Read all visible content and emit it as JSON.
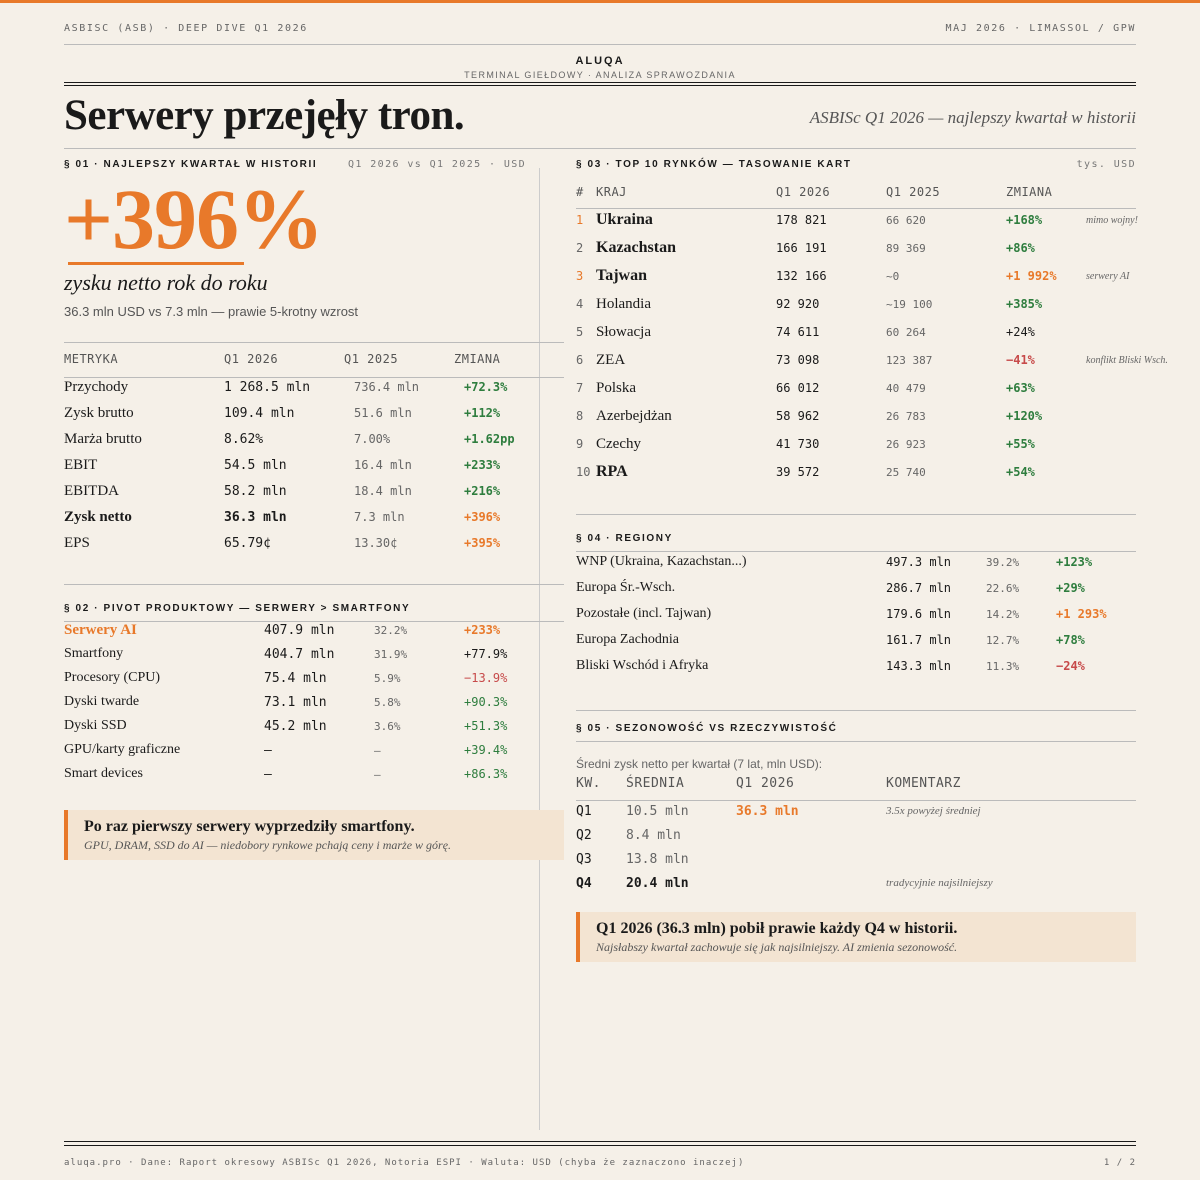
{
  "header": {
    "top_left": "ASBISC (ASB) · DEEP DIVE Q1 2026",
    "top_right": "MAJ 2026 · LIMASSOL / GPW",
    "brand": "ALUQA",
    "brand_sub": "TERMINAL GIEŁDOWY · ANALIZA SPRAWOZDANIA",
    "headline": "Serwery przejęły tron.",
    "subhead": "ASBISc Q1 2026 — najlepszy kwartał w historii"
  },
  "colors": {
    "accent": "#e8792a",
    "positive": "#2e7d3e",
    "negative": "#c74a4a",
    "background": "#f5f0e8"
  },
  "s1": {
    "title": "§ 01 · NAJLEPSZY KWARTAŁ W HISTORII",
    "meta": "Q1 2026 vs Q1 2025 · USD",
    "big_value": "+396%",
    "big_label": "zysku netto rok do roku",
    "big_note": "36.3 mln USD vs 7.3 mln — prawie 5-krotny wzrost",
    "headers": [
      "METRYKA",
      "Q1 2026",
      "Q1 2025",
      "ZMIANA"
    ],
    "rows": [
      {
        "name": "Przychody",
        "q1_2026": "1 268.5 mln",
        "q1_2025": "736.4 mln",
        "change": "+72.3%",
        "tone": "green",
        "bold": false
      },
      {
        "name": "Zysk brutto",
        "q1_2026": "109.4 mln",
        "q1_2025": "51.6 mln",
        "change": "+112%",
        "tone": "green",
        "bold": false
      },
      {
        "name": "Marża brutto",
        "q1_2026": "8.62%",
        "q1_2025": "7.00%",
        "change": "+1.62pp",
        "tone": "green",
        "bold": false
      },
      {
        "name": "EBIT",
        "q1_2026": "54.5 mln",
        "q1_2025": "16.4 mln",
        "change": "+233%",
        "tone": "green",
        "bold": false
      },
      {
        "name": "EBITDA",
        "q1_2026": "58.2 mln",
        "q1_2025": "18.4 mln",
        "change": "+216%",
        "tone": "green",
        "bold": false
      },
      {
        "name": "Zysk netto",
        "q1_2026": "36.3 mln",
        "q1_2025": "7.3 mln",
        "change": "+396%",
        "tone": "orange",
        "bold": true
      },
      {
        "name": "EPS",
        "q1_2026": "65.79¢",
        "q1_2025": "13.30¢",
        "change": "+395%",
        "tone": "orange",
        "bold": false
      }
    ]
  },
  "s2": {
    "title": "§ 02 · PIVOT PRODUKTOWY — SERWERY > SMARTFONY",
    "rows": [
      {
        "name": "Serwery AI",
        "value": "407.9 mln",
        "share": "32.2%",
        "change": "+233%",
        "tone": "orange",
        "highlight": true
      },
      {
        "name": "Smartfony",
        "value": "404.7 mln",
        "share": "31.9%",
        "change": "+77.9%",
        "tone": "dark",
        "highlight": false
      },
      {
        "name": "Procesory (CPU)",
        "value": "75.4 mln",
        "share": "5.9%",
        "change": "−13.9%",
        "tone": "red",
        "highlight": false
      },
      {
        "name": "Dyski twarde",
        "value": "73.1 mln",
        "share": "5.8%",
        "change": "+90.3%",
        "tone": "green",
        "highlight": false
      },
      {
        "name": "Dyski SSD",
        "value": "45.2 mln",
        "share": "3.6%",
        "change": "+51.3%",
        "tone": "green",
        "highlight": false
      },
      {
        "name": "GPU/karty graficzne",
        "value": "—",
        "share": "—",
        "change": "+39.4%",
        "tone": "green",
        "highlight": false
      },
      {
        "name": "Smart devices",
        "value": "—",
        "share": "—",
        "change": "+86.3%",
        "tone": "green",
        "highlight": false
      }
    ],
    "callout_title": "Po raz pierwszy serwery wyprzedziły smartfony.",
    "callout_sub": "GPU, DRAM, SSD do AI — niedobory rynkowe pchają ceny i marże w górę."
  },
  "s3": {
    "title": "§ 03 · TOP 10 RYNKÓW — TASOWANIE KART",
    "meta": "tys. USD",
    "headers": [
      "#",
      "KRAJ",
      "Q1 2026",
      "Q1 2025",
      "ZMIANA"
    ],
    "rows": [
      {
        "rank": "1",
        "country": "Ukraina",
        "q1_2026": "178 821",
        "q1_2025": "66 620",
        "change": "+168%",
        "tone": "green",
        "bold": true,
        "rank_orange": true,
        "note": "mimo wojny!"
      },
      {
        "rank": "2",
        "country": "Kazachstan",
        "q1_2026": "166 191",
        "q1_2025": "89 369",
        "change": "+86%",
        "tone": "green",
        "bold": true,
        "rank_orange": false,
        "note": ""
      },
      {
        "rank": "3",
        "country": "Tajwan",
        "q1_2026": "132 166",
        "q1_2025": "~0",
        "change": "+1 992%",
        "tone": "orange",
        "bold": true,
        "rank_orange": true,
        "note": "serwery AI"
      },
      {
        "rank": "4",
        "country": "Holandia",
        "q1_2026": "92 920",
        "q1_2025": "~19 100",
        "change": "+385%",
        "tone": "green",
        "bold": false,
        "rank_orange": false,
        "note": ""
      },
      {
        "rank": "5",
        "country": "Słowacja",
        "q1_2026": "74 611",
        "q1_2025": "60 264",
        "change": "+24%",
        "tone": "dark",
        "bold": false,
        "rank_orange": false,
        "note": ""
      },
      {
        "rank": "6",
        "country": "ZEA",
        "q1_2026": "73 098",
        "q1_2025": "123 387",
        "change": "−41%",
        "tone": "red",
        "bold": false,
        "rank_orange": false,
        "note": "konflikt Bliski Wsch."
      },
      {
        "rank": "7",
        "country": "Polska",
        "q1_2026": "66 012",
        "q1_2025": "40 479",
        "change": "+63%",
        "tone": "green",
        "bold": false,
        "rank_orange": false,
        "note": ""
      },
      {
        "rank": "8",
        "country": "Azerbejdżan",
        "q1_2026": "58 962",
        "q1_2025": "26 783",
        "change": "+120%",
        "tone": "green",
        "bold": false,
        "rank_orange": false,
        "note": ""
      },
      {
        "rank": "9",
        "country": "Czechy",
        "q1_2026": "41 730",
        "q1_2025": "26 923",
        "change": "+55%",
        "tone": "green",
        "bold": false,
        "rank_orange": false,
        "note": ""
      },
      {
        "rank": "10",
        "country": "RPA",
        "q1_2026": "39 572",
        "q1_2025": "25 740",
        "change": "+54%",
        "tone": "green",
        "bold": true,
        "rank_orange": false,
        "note": ""
      }
    ]
  },
  "s4": {
    "title": "§ 04 · REGIONY",
    "rows": [
      {
        "name": "WNP (Ukraina, Kazachstan...)",
        "value": "497.3 mln",
        "share": "39.2%",
        "change": "+123%",
        "tone": "green"
      },
      {
        "name": "Europa Śr.-Wsch.",
        "value": "286.7 mln",
        "share": "22.6%",
        "change": "+29%",
        "tone": "green"
      },
      {
        "name": "Pozostałe (incl. Tajwan)",
        "value": "179.6 mln",
        "share": "14.2%",
        "change": "+1 293%",
        "tone": "orange"
      },
      {
        "name": "Europa Zachodnia",
        "value": "161.7 mln",
        "share": "12.7%",
        "change": "+78%",
        "tone": "green"
      },
      {
        "name": "Bliski Wschód i Afryka",
        "value": "143.3 mln",
        "share": "11.3%",
        "change": "−24%",
        "tone": "red"
      }
    ]
  },
  "s5": {
    "title": "§ 05 · SEZONOWOŚĆ VS RZECZYWISTOŚĆ",
    "intro": "Średni zysk netto per kwartał (7 lat, mln USD):",
    "headers": [
      "KW.",
      "ŚREDNIA",
      "Q1 2026",
      "KOMENTARZ"
    ],
    "rows": [
      {
        "q": "Q1",
        "avg": "10.5 mln",
        "q1_2026": "36.3 mln",
        "comment": "3.5x powyżej średniej",
        "bold": false
      },
      {
        "q": "Q2",
        "avg": "8.4 mln",
        "q1_2026": "",
        "comment": "",
        "bold": false
      },
      {
        "q": "Q3",
        "avg": "13.8 mln",
        "q1_2026": "",
        "comment": "",
        "bold": false
      },
      {
        "q": "Q4",
        "avg": "20.4 mln",
        "q1_2026": "",
        "comment": "tradycyjnie najsilniejszy",
        "bold": true
      }
    ],
    "callout_title": "Q1 2026 (36.3 mln) pobił prawie każdy Q4 w historii.",
    "callout_sub": "Najsłabszy kwartał zachowuje się jak najsilniejszy. AI zmienia sezonowość."
  },
  "footer": {
    "left": "aluqa.pro · Dane: Raport okresowy ASBISc Q1 2026, Notoria ESPI · Waluta: USD (chyba że zaznaczono inaczej)",
    "right": "1 / 2"
  }
}
